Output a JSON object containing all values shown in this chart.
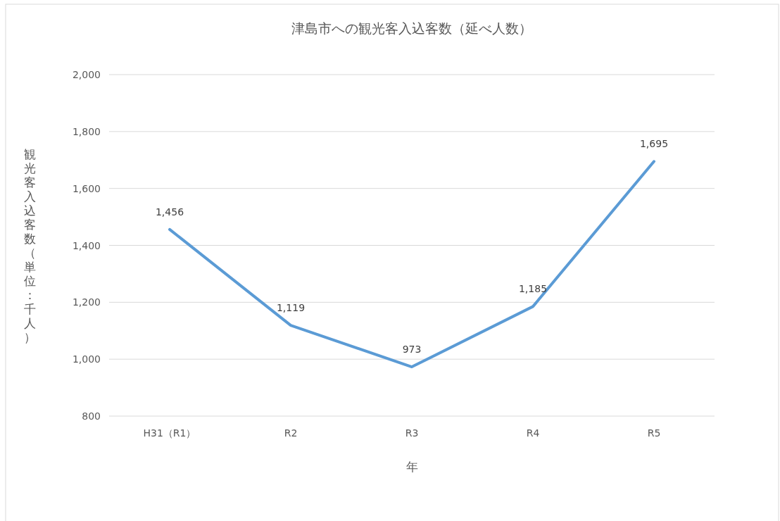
{
  "chart_data": {
    "type": "line",
    "title": "津島市への観光客入込客数（延べ人数）",
    "xlabel": "年",
    "ylabel": "観光客入込客数（単位：千人）",
    "categories": [
      "H31（R1）",
      "R2",
      "R3",
      "R4",
      "R5"
    ],
    "series": [
      {
        "color": "#5b9bd5",
        "values": [
          1456,
          1119,
          973,
          1185,
          1695
        ],
        "value_labels": [
          "1,456",
          "1,119",
          "973",
          "1,185",
          "1,695"
        ]
      }
    ],
    "ylim": [
      800,
      2000
    ],
    "yticks": [
      800,
      {
        "value": 1000,
        "label": "1,000"
      },
      {
        "value": 1200,
        "label": "1,200"
      },
      {
        "value": 1400,
        "label": "1,400"
      },
      {
        "value": 1600,
        "label": "1,600"
      },
      {
        "value": 1800,
        "label": "1,800"
      },
      {
        "value": 2000,
        "label": "2,000"
      }
    ],
    "grid": "y",
    "marker": "none",
    "line_style": "solid"
  }
}
